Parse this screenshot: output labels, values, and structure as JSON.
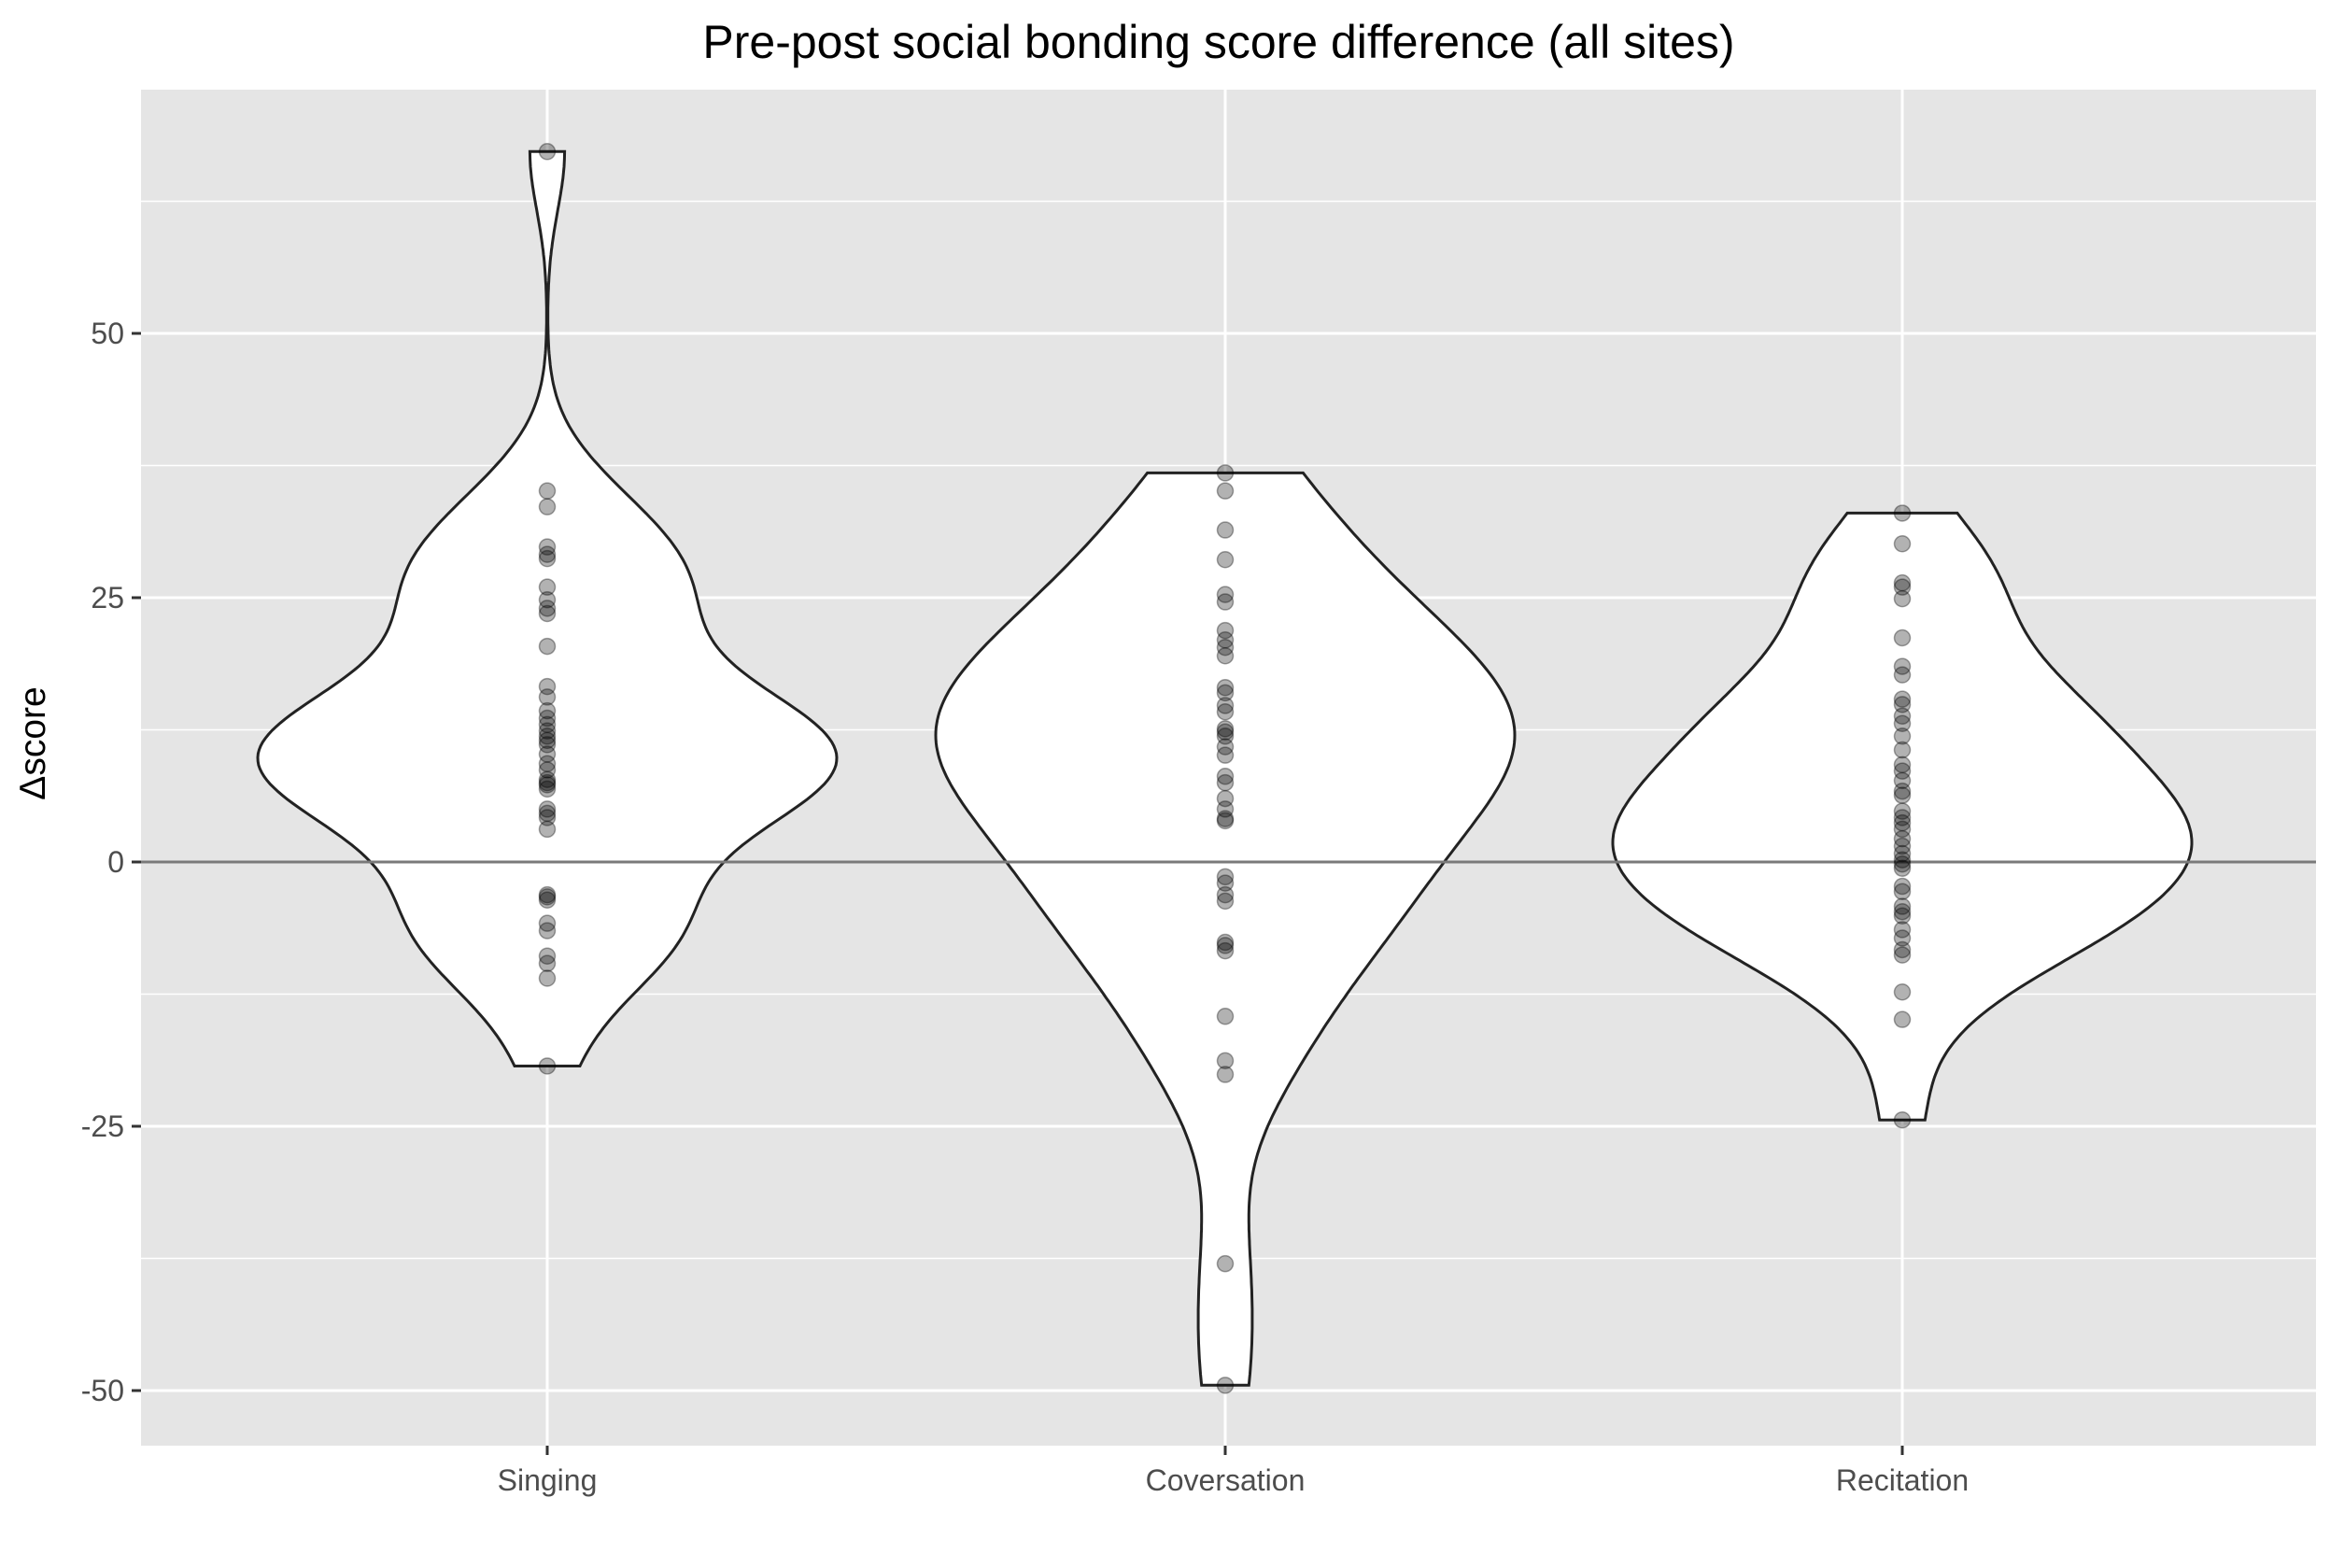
{
  "chart_data": {
    "type": "violin",
    "title": "Pre-post social bonding score difference (all sites)",
    "xlabel": "",
    "ylabel": "Δscore",
    "categories": [
      "Singing",
      "Coversation",
      "Recitation"
    ],
    "ylim": [
      -55,
      73
    ],
    "yticks": [
      -50,
      -25,
      0,
      25,
      50
    ],
    "ytick_labels": [
      "-50",
      "-25",
      "0",
      "25",
      "50"
    ],
    "reference_line": 0,
    "grid": true,
    "legend": "none",
    "colors": {
      "panel": "#e5e5e5",
      "grid": "#ffffff",
      "violin_fill": "#ffffff",
      "violin_stroke": "#222222",
      "point": "#000000",
      "reference_line": "#7a7a7a",
      "tick_label": "#4d4d4d"
    },
    "series": [
      {
        "category": "Singing",
        "range": [
          -19.3,
          67.2
        ],
        "points": [
          67.2,
          35.1,
          33.6,
          29.8,
          29.1,
          28.7,
          26.0,
          24.8,
          24.0,
          23.5,
          20.4,
          16.6,
          15.6,
          14.3,
          13.6,
          13.0,
          12.4,
          11.9,
          11.5,
          11.1,
          10.2,
          9.3,
          8.7,
          7.8,
          7.5,
          7.3,
          6.9,
          5.0,
          4.6,
          4.2,
          3.1,
          -3.1,
          -3.3,
          -3.6,
          -5.8,
          -6.5,
          -8.9,
          -9.6,
          -11.0,
          -19.3
        ]
      },
      {
        "category": "Coversation",
        "range": [
          -49.5,
          36.8
        ],
        "points": [
          36.8,
          35.1,
          31.4,
          28.6,
          25.3,
          24.6,
          21.9,
          21.0,
          20.3,
          19.5,
          16.5,
          16.0,
          14.8,
          14.2,
          12.6,
          12.3,
          11.9,
          10.9,
          10.1,
          8.1,
          7.5,
          6.0,
          5.0,
          4.1,
          3.9,
          -1.4,
          -2.0,
          -3.1,
          -3.7,
          -7.6,
          -7.9,
          -8.4,
          -14.6,
          -18.8,
          -20.1,
          -38.0,
          -49.5
        ]
      },
      {
        "category": "Recitation",
        "range": [
          -24.4,
          33.0
        ],
        "points": [
          33.0,
          30.1,
          26.4,
          26.0,
          24.9,
          21.2,
          18.5,
          17.7,
          15.4,
          14.9,
          13.8,
          13.1,
          11.9,
          10.6,
          9.2,
          8.6,
          7.7,
          6.7,
          6.3,
          4.8,
          4.2,
          3.7,
          3.1,
          2.2,
          1.5,
          0.8,
          0.2,
          -0.2,
          -0.6,
          -2.3,
          -2.8,
          -4.2,
          -4.7,
          -5.1,
          -6.4,
          -7.2,
          -8.3,
          -8.8,
          -12.3,
          -14.9,
          -24.4
        ]
      }
    ]
  }
}
